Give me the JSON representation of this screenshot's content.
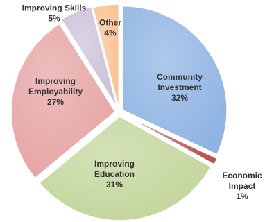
{
  "chart_data": {
    "type": "pie",
    "slices": [
      {
        "name": "Community Investment",
        "label_lines": [
          "Community",
          "Investment"
        ],
        "value": 32,
        "value_label": "32%",
        "color": "#8fb4e3"
      },
      {
        "name": "Economic Impact",
        "label_lines": [
          "Economic",
          "Impact"
        ],
        "value": 1,
        "value_label": "1%",
        "color": "#c0504d"
      },
      {
        "name": "Improving Education",
        "label_lines": [
          "Improving",
          "Education"
        ],
        "value": 31,
        "value_label": "31%",
        "color": "#c3d69b"
      },
      {
        "name": "Improving Employability",
        "label_lines": [
          "Improving",
          "Employability"
        ],
        "value": 27,
        "value_label": "27%",
        "color": "#e6a4a4"
      },
      {
        "name": "Improving Skills",
        "label_lines": [
          "Improving Skills"
        ],
        "value": 5,
        "value_label": "5%",
        "color": "#ccc1da"
      },
      {
        "name": "Other",
        "label_lines": [
          "Other"
        ],
        "value": 4,
        "value_label": "4%",
        "color": "#fac090"
      }
    ],
    "start_angle": "12 o'clock",
    "direction": "clockwise",
    "legend": "none"
  }
}
